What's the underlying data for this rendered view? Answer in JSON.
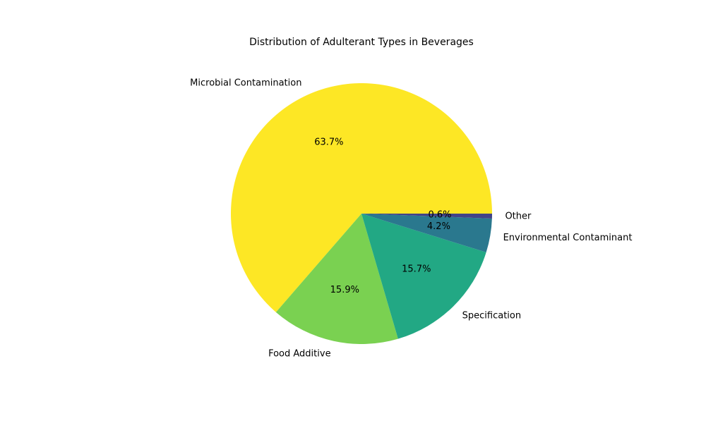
{
  "chart_data": {
    "type": "pie",
    "title": "Distribution of Adulterant Types in Beverages",
    "start_angle_deg": 0,
    "direction": "counterclockwise",
    "slices": [
      {
        "label": "Microbial Contamination",
        "percent_label": "63.7%",
        "value": 63.7,
        "color": "#fde725"
      },
      {
        "label": "Food Additive",
        "percent_label": "15.9%",
        "value": 15.9,
        "color": "#7ad151"
      },
      {
        "label": "Specification",
        "percent_label": "15.7%",
        "value": 15.7,
        "color": "#22a884"
      },
      {
        "label": "Environmental Contaminant",
        "percent_label": "4.2%",
        "value": 4.2,
        "color": "#2a788e"
      },
      {
        "label": "Other",
        "percent_label": "0.6%",
        "value": 0.6,
        "color": "#414487"
      }
    ]
  }
}
